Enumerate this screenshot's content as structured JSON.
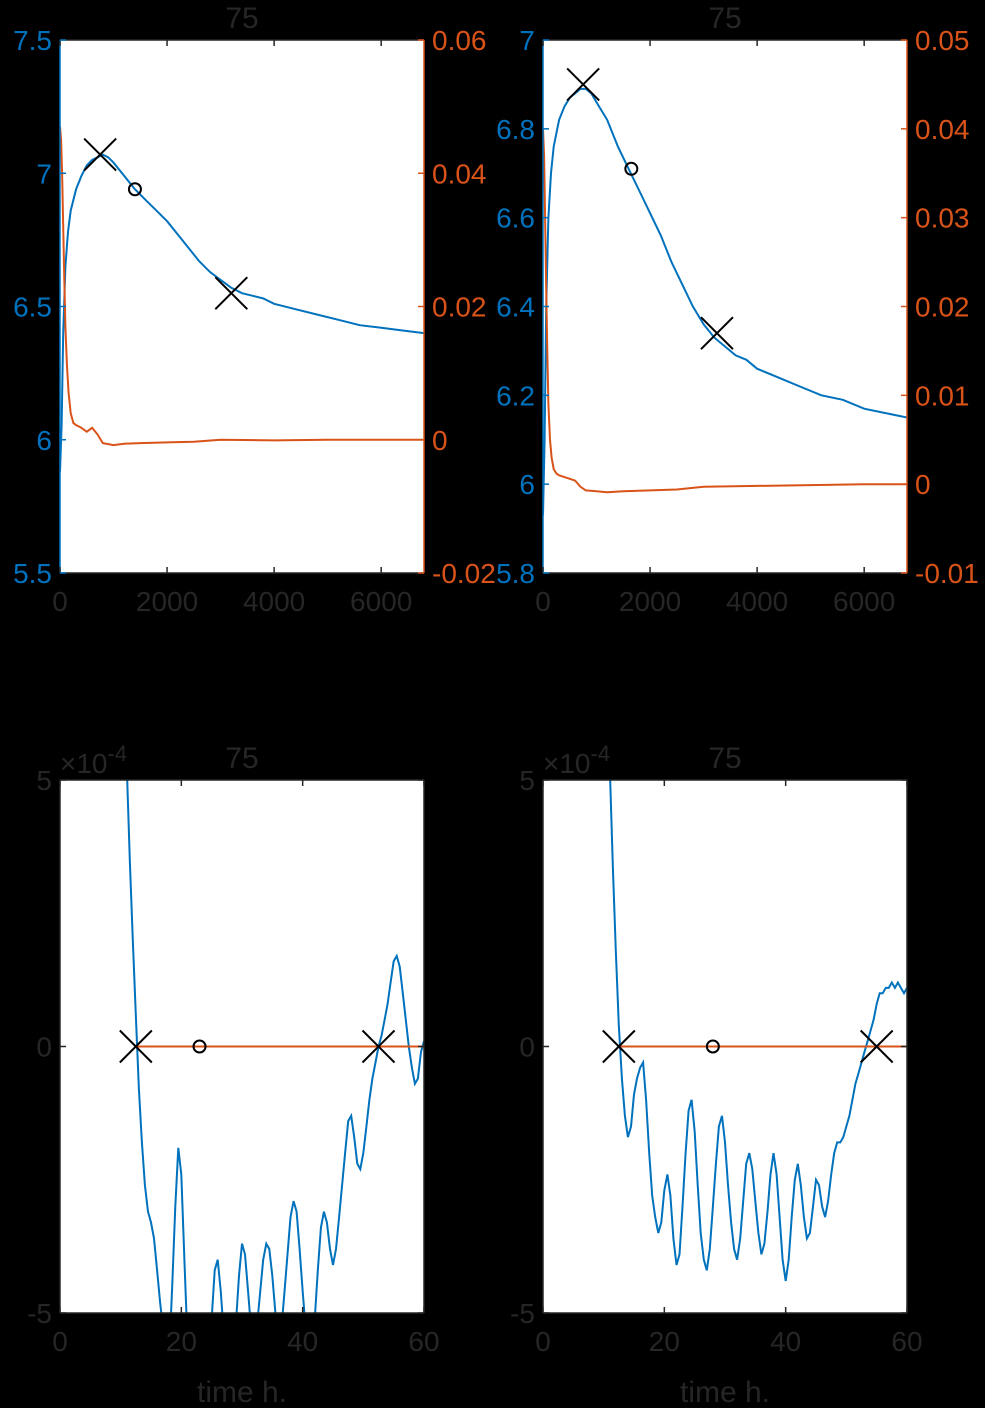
{
  "colors": {
    "blue": "#0072BD",
    "orange": "#D95319",
    "axis_black": "#262626",
    "background": "#000000",
    "plot_bg": "#FFFFFF",
    "marker": "#000000"
  },
  "chart_data": [
    {
      "type": "line",
      "title": "75",
      "xlim": [
        0,
        6800
      ],
      "xticks": [
        0,
        2000,
        4000,
        6000
      ],
      "ylim_left": [
        5.5,
        7.5
      ],
      "yticks_left": [
        5.5,
        6,
        6.5,
        7,
        7.5
      ],
      "ylim_right": [
        -0.02,
        0.06
      ],
      "yticks_right": [
        -0.02,
        0,
        0.02,
        0.04,
        0.06
      ],
      "ytick_labels_right": [
        "-0.02",
        "0",
        "0.02",
        "0.04",
        "0.06"
      ],
      "series": [
        {
          "axis": "left",
          "color": "blue",
          "x": [
            0,
            30,
            60,
            100,
            150,
            200,
            300,
            400,
            500,
            600,
            700,
            800,
            900,
            1000,
            1200,
            1400,
            1600,
            1800,
            2000,
            2200,
            2400,
            2600,
            2800,
            3000,
            3200,
            3400,
            3600,
            3800,
            4000,
            4400,
            4800,
            5200,
            5600,
            6000,
            6400,
            6800
          ],
          "y": [
            5.88,
            6.05,
            6.4,
            6.65,
            6.78,
            6.86,
            6.94,
            6.99,
            7.03,
            7.05,
            7.06,
            7.07,
            7.06,
            7.04,
            6.99,
            6.94,
            6.9,
            6.86,
            6.82,
            6.77,
            6.72,
            6.67,
            6.63,
            6.6,
            6.57,
            6.55,
            6.54,
            6.53,
            6.51,
            6.49,
            6.47,
            6.45,
            6.43,
            6.42,
            6.41,
            6.4
          ]
        },
        {
          "axis": "right",
          "color": "orange",
          "x": [
            0,
            20,
            40,
            60,
            80,
            100,
            130,
            160,
            200,
            250,
            300,
            350,
            400,
            450,
            500,
            550,
            600,
            700,
            800,
            1000,
            1200,
            1500,
            2000,
            2500,
            3000,
            4000,
            5000,
            6000,
            6800
          ],
          "y": [
            0.047,
            0.045,
            0.04,
            0.032,
            0.024,
            0.017,
            0.011,
            0.007,
            0.004,
            0.0025,
            0.0022,
            0.002,
            0.0018,
            0.0015,
            0.0012,
            0.0015,
            0.0018,
            0.0008,
            -0.0005,
            -0.0008,
            -0.0006,
            -0.0005,
            -0.0004,
            -0.0003,
            0.0,
            -0.0001,
            0.0,
            0.0,
            0.0
          ]
        }
      ],
      "x_markers": [
        {
          "x": 750,
          "y": 7.07
        },
        {
          "x": 3200,
          "y": 6.55
        }
      ],
      "o_markers": [
        {
          "x": 1400,
          "y": 6.94
        }
      ]
    },
    {
      "type": "line",
      "title": "75",
      "xlim": [
        0,
        6800
      ],
      "xticks": [
        0,
        2000,
        4000,
        6000
      ],
      "ylim_left": [
        5.8,
        7
      ],
      "yticks_left": [
        5.8,
        6,
        6.2,
        6.4,
        6.6,
        6.8,
        7
      ],
      "ylim_right": [
        -0.01,
        0.05
      ],
      "yticks_right": [
        -0.01,
        0,
        0.01,
        0.02,
        0.03,
        0.04,
        0.05
      ],
      "ytick_labels_right": [
        "-0.01",
        "0",
        "0.01",
        "0.02",
        "0.03",
        "0.04",
        "0.05"
      ],
      "series": [
        {
          "axis": "left",
          "color": "blue",
          "x": [
            0,
            30,
            60,
            100,
            150,
            200,
            300,
            400,
            500,
            600,
            700,
            800,
            900,
            1000,
            1200,
            1400,
            1600,
            1800,
            2000,
            2200,
            2400,
            2600,
            2800,
            3000,
            3200,
            3400,
            3600,
            3800,
            4000,
            4400,
            4800,
            5200,
            5600,
            6000,
            6400,
            6800
          ],
          "y": [
            5.93,
            6.1,
            6.4,
            6.6,
            6.7,
            6.76,
            6.82,
            6.85,
            6.87,
            6.88,
            6.89,
            6.89,
            6.88,
            6.86,
            6.82,
            6.76,
            6.71,
            6.66,
            6.61,
            6.56,
            6.5,
            6.45,
            6.4,
            6.36,
            6.33,
            6.31,
            6.29,
            6.28,
            6.26,
            6.24,
            6.22,
            6.2,
            6.19,
            6.17,
            6.16,
            6.15
          ]
        },
        {
          "axis": "right",
          "color": "orange",
          "x": [
            0,
            20,
            40,
            60,
            80,
            100,
            130,
            160,
            200,
            250,
            300,
            350,
            400,
            450,
            500,
            550,
            600,
            700,
            800,
            1000,
            1200,
            1500,
            2000,
            2500,
            3000,
            4000,
            5000,
            6000,
            6800
          ],
          "y": [
            0.04,
            0.037,
            0.03,
            0.022,
            0.015,
            0.009,
            0.005,
            0.003,
            0.0017,
            0.0012,
            0.001,
            0.0009,
            0.0008,
            0.0007,
            0.0006,
            0.0005,
            0.0004,
            -0.0003,
            -0.0007,
            -0.0008,
            -0.0009,
            -0.0008,
            -0.0007,
            -0.0006,
            -0.0003,
            -0.0002,
            -0.0001,
            0.0,
            0.0
          ]
        }
      ],
      "x_markers": [
        {
          "x": 750,
          "y": 6.9
        },
        {
          "x": 3250,
          "y": 6.34
        }
      ],
      "o_markers": [
        {
          "x": 1650,
          "y": 6.71
        }
      ]
    },
    {
      "type": "line",
      "title": "75",
      "xlabel": "time h.",
      "exponent_label": "×10",
      "exponent": "-4",
      "xlim": [
        0,
        60
      ],
      "xticks": [
        0,
        20,
        40,
        60
      ],
      "ylim": [
        -5,
        5
      ],
      "yticks": [
        -5,
        0,
        5
      ],
      "series": [
        {
          "color": "blue",
          "x": [
            11,
            11.5,
            12,
            12.5,
            13,
            13.5,
            14,
            14.5,
            15,
            15.5,
            16,
            16.5,
            17,
            17.5,
            18,
            18.5,
            19,
            19.5,
            20,
            20.5,
            21,
            21.5,
            22,
            22.5,
            23,
            23.5,
            24,
            24.5,
            25,
            25.5,
            26,
            26.5,
            27,
            27.5,
            28,
            28.5,
            29,
            29.5,
            30,
            30.5,
            31,
            31.5,
            32,
            32.5,
            33,
            33.5,
            34,
            34.5,
            35,
            35.5,
            36,
            36.5,
            37,
            37.5,
            38,
            38.5,
            39,
            39.5,
            40,
            40.5,
            41,
            41.5,
            42,
            42.5,
            43,
            43.5,
            44,
            44.5,
            45,
            45.5,
            46,
            46.5,
            47,
            47.5,
            48,
            48.5,
            49,
            49.5,
            50,
            50.5,
            51,
            51.5,
            52,
            52.5,
            53,
            53.5,
            54,
            54.5,
            55,
            55.5,
            56,
            56.5,
            57,
            57.5,
            58,
            58.5,
            59,
            59.5,
            60
          ],
          "y": [
            5.3,
            3.5,
            2.0,
            0.6,
            -0.8,
            -1.8,
            -2.6,
            -3.1,
            -3.3,
            -3.6,
            -4.2,
            -4.8,
            -5.3,
            -5.7,
            -5.8,
            -4.5,
            -3.0,
            -1.9,
            -2.4,
            -4.0,
            -5.5,
            -6.2,
            -6.5,
            -6.3,
            -6.0,
            -5.8,
            -5.6,
            -5.5,
            -5.1,
            -4.2,
            -4.0,
            -4.6,
            -5.4,
            -6.0,
            -6.2,
            -6.0,
            -5.2,
            -4.3,
            -3.7,
            -3.9,
            -4.6,
            -5.3,
            -5.6,
            -5.2,
            -4.6,
            -4.0,
            -3.7,
            -3.8,
            -4.3,
            -5.0,
            -5.5,
            -5.3,
            -4.6,
            -3.9,
            -3.2,
            -2.9,
            -3.1,
            -3.8,
            -4.6,
            -5.3,
            -5.8,
            -5.7,
            -5.1,
            -4.2,
            -3.4,
            -3.1,
            -3.3,
            -3.8,
            -4.1,
            -3.8,
            -3.2,
            -2.6,
            -2.0,
            -1.4,
            -1.3,
            -1.7,
            -2.2,
            -2.3,
            -2.0,
            -1.5,
            -1.0,
            -0.6,
            -0.3,
            0.0,
            0.2,
            0.5,
            0.8,
            1.2,
            1.6,
            1.7,
            1.5,
            1.0,
            0.5,
            0.0,
            -0.4,
            -0.7,
            -0.6,
            -0.1,
            0.1
          ]
        },
        {
          "color": "orange",
          "x": [
            12.5,
            60
          ],
          "y": [
            0,
            0
          ]
        }
      ],
      "x_markers": [
        {
          "x": 12.5,
          "y": 0
        },
        {
          "x": 52.5,
          "y": 0
        }
      ],
      "o_markers": [
        {
          "x": 23,
          "y": 0
        }
      ]
    },
    {
      "type": "line",
      "title": "75",
      "xlabel": "time h.",
      "exponent_label": "×10",
      "exponent": "-4",
      "xlim": [
        0,
        60
      ],
      "xticks": [
        0,
        20,
        40,
        60
      ],
      "ylim": [
        -5,
        5
      ],
      "yticks": [
        -5,
        0,
        5
      ],
      "series": [
        {
          "color": "blue",
          "x": [
            11,
            11.5,
            12,
            12.5,
            13,
            13.5,
            14,
            14.5,
            15,
            15.5,
            16,
            16.5,
            17,
            17.5,
            18,
            18.5,
            19,
            19.5,
            20,
            20.5,
            21,
            21.5,
            22,
            22.5,
            23,
            23.5,
            24,
            24.5,
            25,
            25.5,
            26,
            26.5,
            27,
            27.5,
            28,
            28.5,
            29,
            29.5,
            30,
            30.5,
            31,
            31.5,
            32,
            32.5,
            33,
            33.5,
            34,
            34.5,
            35,
            35.5,
            36,
            36.5,
            37,
            37.5,
            38,
            38.5,
            39,
            39.5,
            40,
            40.5,
            41,
            41.5,
            42,
            42.5,
            43,
            43.5,
            44,
            44.5,
            45,
            45.5,
            46,
            46.5,
            47,
            47.5,
            48,
            48.5,
            49,
            49.5,
            50,
            50.5,
            51,
            51.5,
            52,
            52.5,
            53,
            53.5,
            54,
            54.5,
            55,
            55.5,
            56,
            56.5,
            57,
            57.5,
            58,
            58.5,
            59,
            59.5,
            60
          ],
          "y": [
            5.3,
            3.4,
            1.8,
            0.4,
            -0.6,
            -1.3,
            -1.7,
            -1.5,
            -0.9,
            -0.6,
            -0.4,
            -0.3,
            -1.0,
            -2.0,
            -2.8,
            -3.2,
            -3.5,
            -3.3,
            -2.7,
            -2.4,
            -2.8,
            -3.6,
            -4.1,
            -3.9,
            -3.0,
            -2.0,
            -1.2,
            -1.0,
            -1.6,
            -2.6,
            -3.5,
            -4.0,
            -4.2,
            -3.8,
            -3.0,
            -2.2,
            -1.5,
            -1.3,
            -1.8,
            -2.6,
            -3.3,
            -3.8,
            -4.0,
            -3.6,
            -2.9,
            -2.2,
            -2.0,
            -2.3,
            -2.9,
            -3.5,
            -3.9,
            -3.7,
            -3.1,
            -2.4,
            -2.0,
            -2.4,
            -3.2,
            -4.0,
            -4.4,
            -4.0,
            -3.2,
            -2.5,
            -2.2,
            -2.6,
            -3.2,
            -3.6,
            -3.5,
            -3.0,
            -2.5,
            -2.6,
            -3.0,
            -3.2,
            -2.9,
            -2.4,
            -2.0,
            -1.8,
            -1.8,
            -1.7,
            -1.5,
            -1.3,
            -1.0,
            -0.7,
            -0.5,
            -0.3,
            -0.1,
            0.1,
            0.3,
            0.5,
            0.8,
            1.0,
            1.0,
            1.1,
            1.1,
            1.2,
            1.1,
            1.2,
            1.1,
            1.0,
            1.1
          ]
        },
        {
          "color": "orange",
          "x": [
            12.5,
            60
          ],
          "y": [
            0,
            0
          ]
        }
      ],
      "x_markers": [
        {
          "x": 12.5,
          "y": 0
        },
        {
          "x": 55,
          "y": 0
        }
      ],
      "o_markers": [
        {
          "x": 28,
          "y": 0
        }
      ]
    }
  ]
}
